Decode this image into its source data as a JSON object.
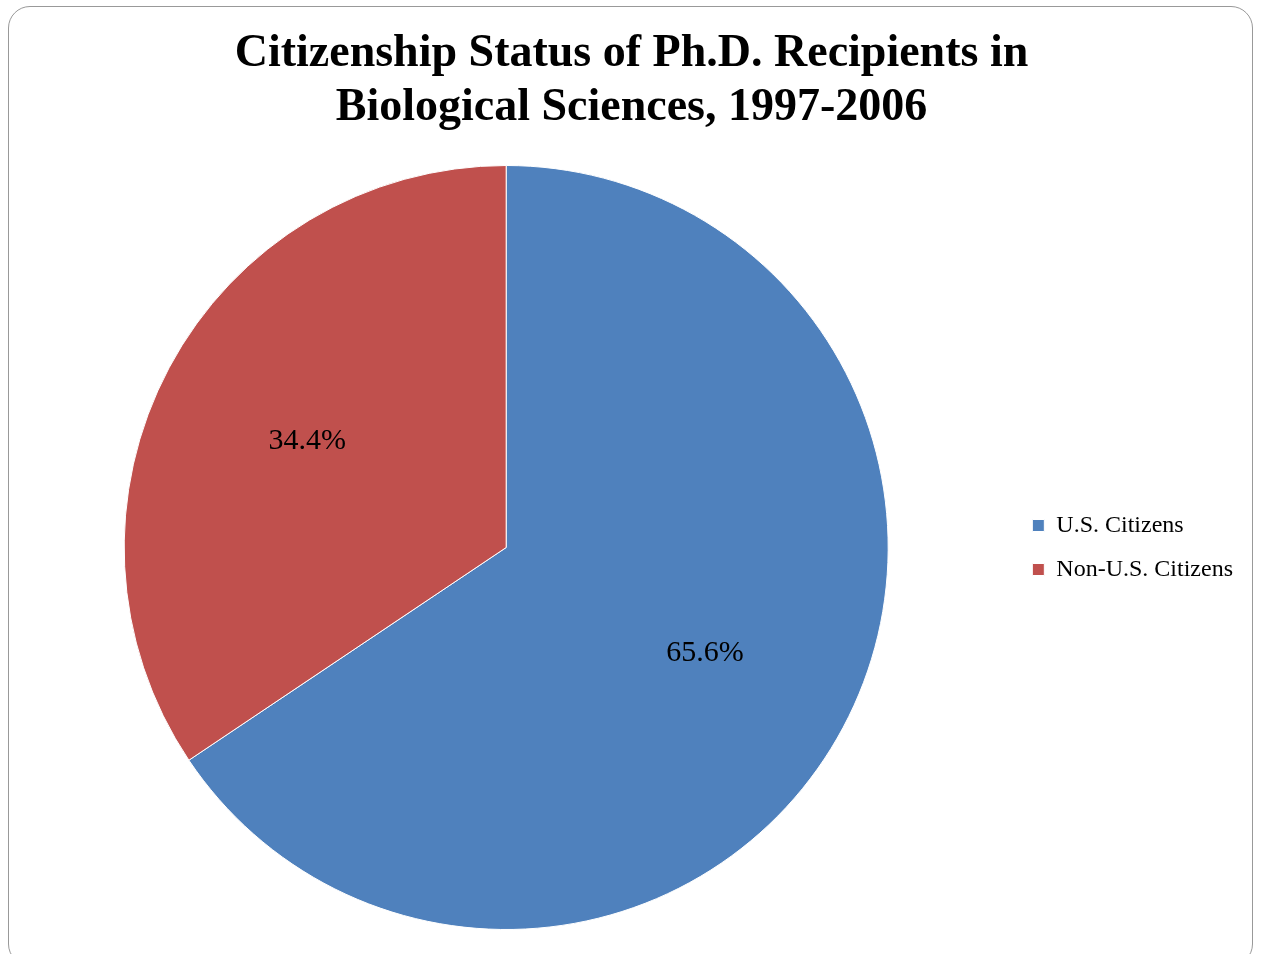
{
  "chart_data": {
    "type": "pie",
    "title": "Citizenship Status of Ph.D. Recipients in Biological Sciences, 1997-2006",
    "categories": [
      "U.S. Citizens",
      "Non-U.S. Citizens"
    ],
    "values": [
      65.6,
      34.4
    ],
    "colors": [
      "#4f81bd",
      "#c0504d"
    ],
    "value_labels": [
      "65.6%",
      "34.4%"
    ],
    "legend": "right"
  }
}
